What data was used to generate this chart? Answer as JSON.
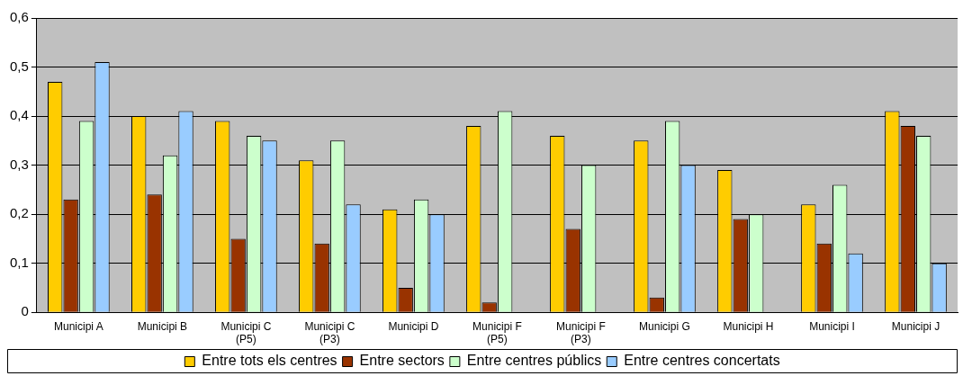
{
  "chart_data": {
    "type": "bar",
    "categories": [
      "Municipi A",
      "Municipi B",
      "Municipi C (P5)",
      "Municipi C (P3)",
      "Municipi D",
      "Municipi F (P5)",
      "Municipi F (P3)",
      "Municipi G",
      "Municipi H",
      "Municipi I",
      "Municipi J"
    ],
    "series": [
      {
        "name": "Entre tots els centres",
        "color": "#ffcc00",
        "values": [
          0.47,
          0.4,
          0.39,
          0.31,
          0.21,
          0.38,
          0.36,
          0.35,
          0.29,
          0.22,
          0.41
        ]
      },
      {
        "name": "Entre sectors",
        "color": "#993300",
        "values": [
          0.23,
          0.24,
          0.15,
          0.14,
          0.05,
          0.02,
          0.17,
          0.03,
          0.19,
          0.14,
          0.38
        ]
      },
      {
        "name": "Entre centres públics",
        "color": "#ccffcc",
        "values": [
          0.39,
          0.32,
          0.36,
          0.35,
          0.23,
          0.41,
          0.3,
          0.39,
          0.2,
          0.26,
          0.36
        ]
      },
      {
        "name": "Entre centres concertats",
        "color": "#99ccff",
        "values": [
          0.51,
          0.41,
          0.35,
          0.22,
          0.2,
          null,
          null,
          0.3,
          null,
          0.12,
          0.1
        ]
      }
    ],
    "ylim": [
      0,
      0.6
    ],
    "yticks": [
      {
        "value": 0,
        "label": "0"
      },
      {
        "value": 0.1,
        "label": "0,1"
      },
      {
        "value": 0.2,
        "label": "0,2"
      },
      {
        "value": 0.3,
        "label": "0,3"
      },
      {
        "value": 0.4,
        "label": "0,4"
      },
      {
        "value": 0.5,
        "label": "0,5"
      },
      {
        "value": 0.6,
        "label": "0,6"
      }
    ],
    "grid": "y",
    "legend": "bottom"
  }
}
